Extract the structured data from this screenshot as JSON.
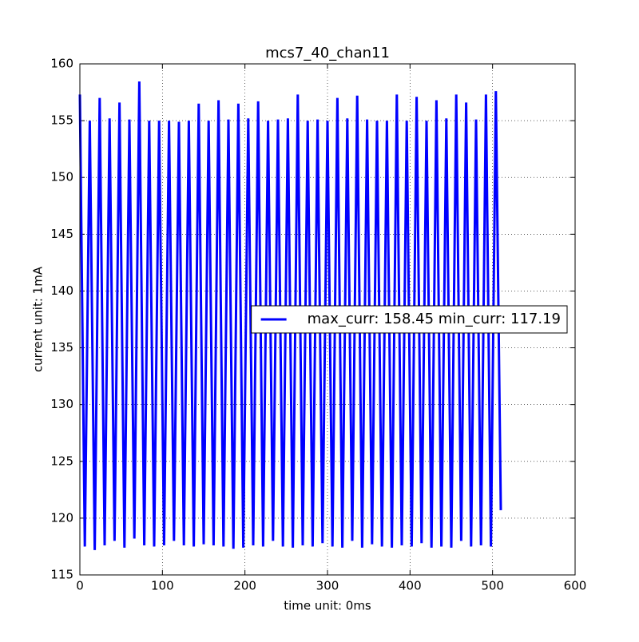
{
  "chart_data": {
    "type": "line",
    "title": "mcs7_40_chan11",
    "x_label": "time unit: 0ms",
    "y_label": "current unit: 1mA",
    "x": [
      0,
      6,
      12,
      18,
      24,
      30,
      36,
      42,
      48,
      54,
      60,
      66,
      72,
      78,
      84,
      90,
      96,
      102,
      108,
      114,
      120,
      126,
      132,
      138,
      144,
      150,
      156,
      162,
      168,
      174,
      180,
      186,
      192,
      198,
      204,
      210,
      216,
      222,
      228,
      234,
      240,
      246,
      252,
      258,
      264,
      270,
      276,
      282,
      288,
      294,
      300,
      306,
      312,
      318,
      324,
      330,
      336,
      342,
      348,
      354,
      360,
      366,
      372,
      378,
      384,
      390,
      396,
      402,
      408,
      414,
      420,
      426,
      432,
      438,
      444,
      450,
      456,
      462,
      468,
      474,
      480,
      486,
      492,
      498,
      504,
      510
    ],
    "series": [
      {
        "name": "max_curr: 158.45 min_curr: 117.19",
        "color": "#0000ff",
        "values": [
          157.3,
          117.5,
          155.0,
          117.19,
          157.0,
          117.6,
          155.2,
          118.0,
          156.6,
          117.4,
          155.1,
          118.2,
          158.45,
          117.6,
          155.0,
          117.5,
          155.0,
          117.6,
          155.0,
          118.0,
          154.9,
          117.6,
          155.0,
          117.5,
          156.5,
          117.7,
          155.0,
          117.6,
          156.8,
          117.5,
          155.1,
          117.3,
          156.5,
          117.4,
          155.2,
          117.6,
          156.7,
          117.5,
          155.0,
          118.0,
          155.1,
          117.5,
          155.2,
          117.4,
          157.3,
          117.6,
          155.0,
          117.5,
          155.1,
          117.8,
          155.0,
          117.5,
          157.0,
          117.4,
          155.2,
          118.0,
          157.2,
          117.4,
          155.1,
          117.7,
          155.0,
          117.5,
          155.0,
          117.4,
          157.3,
          117.6,
          155.0,
          117.5,
          157.1,
          117.8,
          155.0,
          117.4,
          156.8,
          117.5,
          155.2,
          117.4,
          157.3,
          118.0,
          156.6,
          117.5,
          155.1,
          117.6,
          157.3,
          117.5,
          157.6,
          120.7
        ]
      }
    ],
    "xlim": [
      0,
      600
    ],
    "xticks": [
      0,
      100,
      200,
      300,
      400,
      500,
      600
    ],
    "ylim": [
      115,
      160
    ],
    "yticks": [
      115,
      120,
      125,
      130,
      135,
      140,
      145,
      150,
      155,
      160
    ],
    "grid": true,
    "legend": "center right"
  }
}
